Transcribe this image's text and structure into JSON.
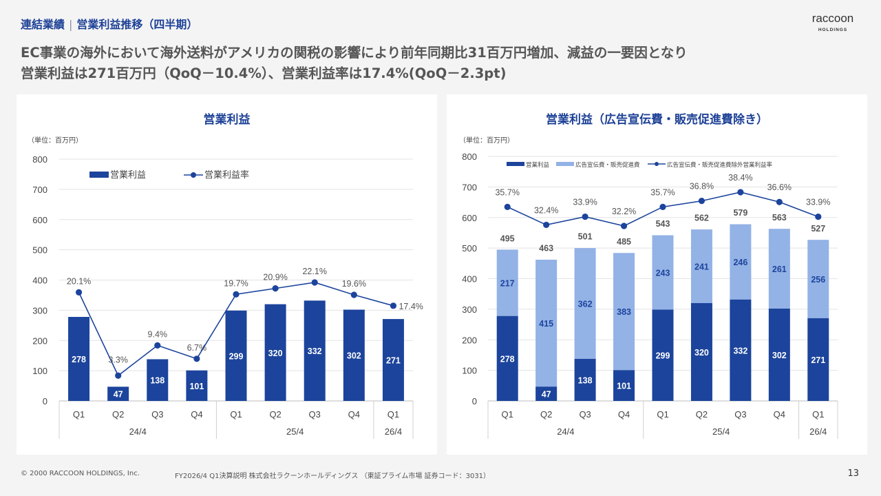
{
  "header": {
    "breadcrumb_section": "連結業績",
    "breadcrumb_separator": "|",
    "breadcrumb_page": "営業利益推移（四半期）",
    "logo_text_line1": "raccoon",
    "logo_text_line2": "HOLDINGS"
  },
  "headline": {
    "line1": "EC事業の海外において海外送料がアメリカの関税の影響により前年同期比31百万円増加、減益の一要因となり",
    "line2": "営業利益は271百万円（QoQ－10.4%）、営業利益率は17.4%(QoQ－2.3pt)"
  },
  "colors": {
    "dark_blue": "#1c449c",
    "light_blue": "#93b2e6",
    "title_blue": "#1d4196"
  },
  "chart_data": [
    {
      "type": "bar",
      "title": "営業利益",
      "unit_label": "（単位：百万円）",
      "categories": [
        "Q1",
        "Q2",
        "Q3",
        "Q4",
        "Q1",
        "Q2",
        "Q3",
        "Q4",
        "Q1"
      ],
      "groups": [
        {
          "label": "24/4",
          "count": 4
        },
        {
          "label": "25/4",
          "count": 4
        },
        {
          "label": "26/4",
          "count": 1
        }
      ],
      "ylim": [
        0,
        800
      ],
      "yticks": [
        0,
        100,
        200,
        300,
        400,
        500,
        600,
        700,
        800
      ],
      "series": [
        {
          "name": "営業利益",
          "type": "bar",
          "values": [
            278,
            47,
            138,
            101,
            299,
            320,
            332,
            302,
            271
          ]
        },
        {
          "name": "営業利益率",
          "type": "line",
          "values": [
            20.1,
            3.3,
            9.4,
            6.7,
            19.7,
            20.9,
            22.1,
            19.6,
            17.4
          ],
          "labels": [
            "20.1%",
            "3.3%",
            "9.4%",
            "6.7%",
            "19.7%",
            "20.9%",
            "22.1%",
            "19.6%",
            "17.4%"
          ]
        }
      ],
      "legend": "top-left",
      "grid": true
    },
    {
      "type": "bar",
      "stacked": true,
      "title": "営業利益（広告宣伝費・販売促進費除き）",
      "unit_label": "（単位：百万円）",
      "categories": [
        "Q1",
        "Q2",
        "Q3",
        "Q4",
        "Q1",
        "Q2",
        "Q3",
        "Q4",
        "Q1"
      ],
      "groups": [
        {
          "label": "24/4",
          "count": 4
        },
        {
          "label": "25/4",
          "count": 4
        },
        {
          "label": "26/4",
          "count": 1
        }
      ],
      "ylim": [
        0,
        800
      ],
      "yticks": [
        0,
        100,
        200,
        300,
        400,
        500,
        600,
        700,
        800
      ],
      "totals": [
        495,
        463,
        501,
        485,
        543,
        562,
        579,
        563,
        527
      ],
      "series": [
        {
          "name": "営業利益",
          "type": "bar",
          "values": [
            278,
            47,
            138,
            101,
            299,
            320,
            332,
            302,
            271
          ]
        },
        {
          "name": "広告宣伝費・販売促進費",
          "type": "bar",
          "values": [
            217,
            415,
            362,
            383,
            243,
            241,
            246,
            261,
            256
          ]
        },
        {
          "name": "広告宣伝費・販売促進費除外営業利益率",
          "type": "line",
          "values": [
            35.7,
            32.4,
            33.9,
            32.2,
            35.7,
            36.8,
            38.4,
            36.6,
            33.9
          ],
          "labels": [
            "35.7%",
            "32.4%",
            "33.9%",
            "32.2%",
            "35.7%",
            "36.8%",
            "38.4%",
            "36.6%",
            "33.9%"
          ]
        }
      ],
      "legend": "top",
      "grid": true
    }
  ],
  "footer": {
    "copyright": "© 2000 RACCOON HOLDINGS, Inc.",
    "doc": "FY2026/4 Q1決算説明 株式会社ラクーンホールディングス （東証プライム市場 証券コード：3031）",
    "page": "13"
  }
}
